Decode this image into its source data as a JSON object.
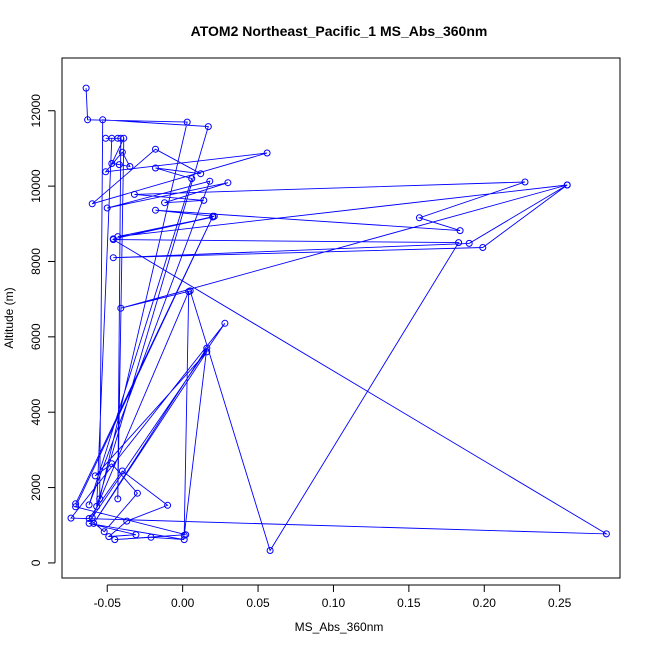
{
  "chart_data": {
    "type": "line",
    "title": "ATOM2 Northeast_Pacific_1 MS_Abs_360nm",
    "xlabel": "MS_Abs_360nm",
    "ylabel": "Altitude (m)",
    "xlim": [
      -0.08,
      0.29
    ],
    "ylim": [
      -400,
      13400
    ],
    "x_ticks": [
      -0.05,
      0.0,
      0.05,
      0.1,
      0.15,
      0.2,
      0.25
    ],
    "x_tick_labels": [
      "-0.05",
      "0.00",
      "0.05",
      "0.10",
      "0.15",
      "0.20",
      "0.25"
    ],
    "y_ticks": [
      0,
      2000,
      4000,
      6000,
      8000,
      10000,
      12000
    ],
    "y_tick_labels": [
      "0",
      "2000",
      "4000",
      "6000",
      "8000",
      "10000",
      "12000"
    ],
    "grid": false,
    "line_color": "#0000ff",
    "marker": "open-circle",
    "series": [
      {
        "points": [
          [
            -0.064,
            12600
          ],
          [
            -0.063,
            11760
          ],
          [
            0.003,
            11700
          ],
          [
            -0.055,
            1700
          ],
          [
            -0.053,
            11760
          ],
          [
            0.017,
            11580
          ],
          [
            -0.057,
            1500
          ],
          [
            -0.047,
            11270
          ],
          [
            -0.043,
            11270
          ],
          [
            -0.051,
            11270
          ],
          [
            -0.041,
            11270
          ],
          [
            -0.043,
            1700
          ],
          [
            -0.039,
            11270
          ],
          [
            -0.047,
            10600
          ],
          [
            -0.042,
            10570
          ],
          [
            -0.035,
            10520
          ],
          [
            -0.04,
            10900
          ],
          [
            -0.051,
            10380
          ],
          [
            0.056,
            10880
          ],
          [
            -0.06,
            9530
          ],
          [
            -0.018,
            10980
          ],
          [
            0.012,
            10330
          ],
          [
            -0.018,
            10480
          ],
          [
            0.006,
            10200
          ],
          [
            -0.062,
            1540
          ],
          [
            0.018,
            10130
          ],
          [
            -0.05,
            9420
          ],
          [
            0.03,
            10090
          ],
          [
            -0.012,
            9560
          ],
          [
            0.014,
            9620
          ],
          [
            -0.032,
            9780
          ],
          [
            0.227,
            10110
          ],
          [
            0.157,
            9160
          ],
          [
            0.184,
            8820
          ],
          [
            -0.018,
            9360
          ],
          [
            0.021,
            9200
          ],
          [
            -0.046,
            8600
          ],
          [
            0.02,
            9180
          ],
          [
            -0.043,
            8660
          ],
          [
            0.255,
            10030
          ],
          [
            0.19,
            8480
          ],
          [
            -0.046,
            8100
          ],
          [
            0.199,
            8370
          ],
          [
            0.255,
            10030
          ],
          [
            -0.041,
            6760
          ],
          [
            0.005,
            7220
          ],
          [
            0.058,
            330
          ],
          [
            0.183,
            8500
          ],
          [
            -0.046,
            8580
          ],
          [
            0.281,
            770
          ],
          [
            -0.074,
            1190
          ],
          [
            0.028,
            6360
          ],
          [
            -0.06,
            1200
          ],
          [
            0.004,
            7200
          ],
          [
            0.001,
            730
          ],
          [
            0.016,
            5700
          ],
          [
            -0.059,
            1050
          ],
          [
            0.016,
            5600
          ],
          [
            -0.058,
            2310
          ],
          [
            -0.047,
            2630
          ],
          [
            -0.03,
            1850
          ],
          [
            -0.052,
            830
          ],
          [
            -0.062,
            1180
          ],
          [
            -0.04,
            2440
          ],
          [
            -0.01,
            1530
          ],
          [
            -0.037,
            1110
          ],
          [
            -0.049,
            700
          ],
          [
            -0.031,
            750
          ],
          [
            -0.062,
            1050
          ],
          [
            0.001,
            620
          ],
          [
            -0.021,
            680
          ],
          [
            -0.045,
            620
          ],
          [
            0.002,
            750
          ],
          [
            -0.071,
            1490
          ],
          [
            0.02,
            9200
          ],
          [
            -0.071,
            1570
          ]
        ]
      }
    ]
  }
}
